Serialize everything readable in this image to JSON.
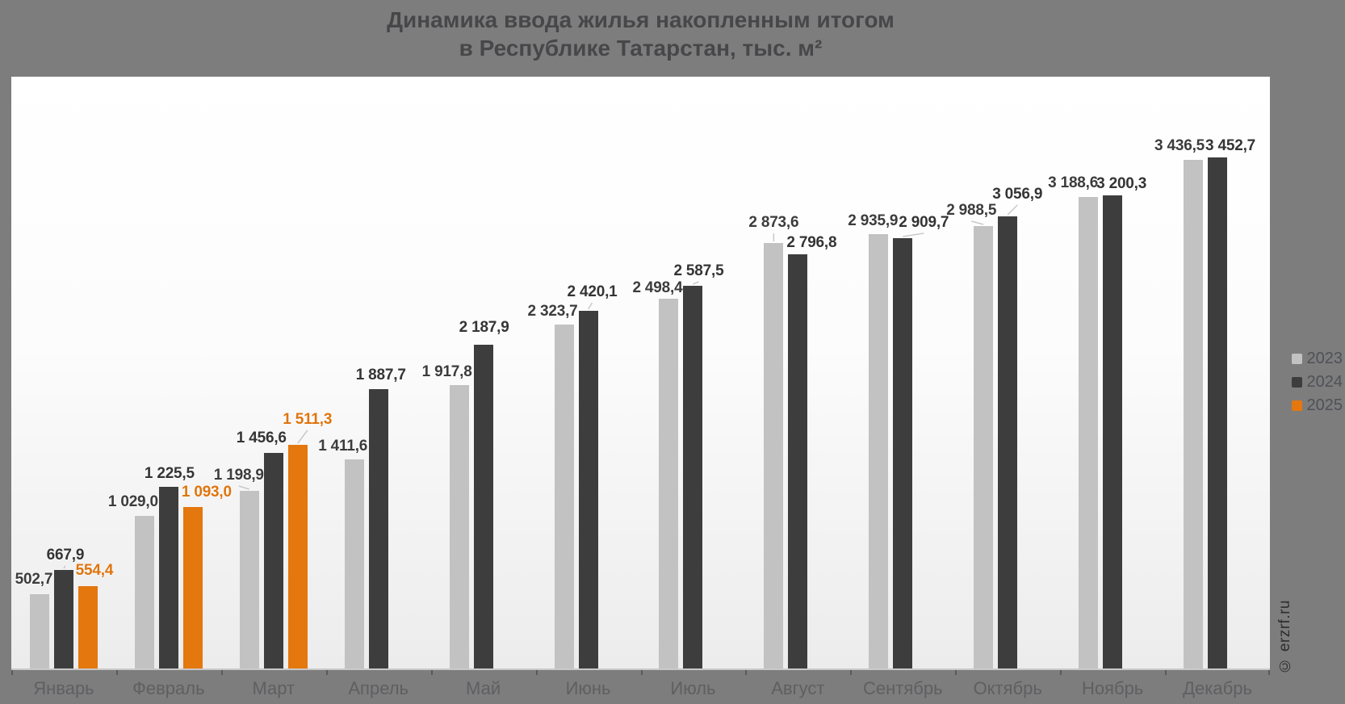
{
  "title": {
    "line1": "Динамика ввода жилья накопленным итогом",
    "line2": "в Республике Татарстан, тыс. м²"
  },
  "watermark": "© erzrf.ru",
  "legend": [
    {
      "label": "2023",
      "color": "#c2c2c2"
    },
    {
      "label": "2024",
      "color": "#3d3d3d"
    },
    {
      "label": "2025",
      "color": "#e4770e"
    }
  ],
  "colors": {
    "background": "#7d7d7d",
    "plot_top": "#ffffff",
    "plot_bottom": "#ececec",
    "axis_line": "#c9c9c9",
    "leader_line": "#c9c9c9"
  },
  "chart_data": {
    "type": "bar",
    "title": "Динамика ввода жилья накопленным итогом в Республике Татарстан, тыс. м²",
    "categories": [
      "Январь",
      "Февраль",
      "Март",
      "Апрель",
      "Май",
      "Июнь",
      "Июль",
      "Август",
      "Сентябрь",
      "Октябрь",
      "Ноябрь",
      "Декабрь"
    ],
    "series": [
      {
        "name": "2023",
        "color": "#c2c2c2",
        "label_color": "#3c3c3c",
        "values": [
          502.7,
          1029.0,
          1198.9,
          1411.6,
          1917.8,
          2323.7,
          2498.4,
          2873.6,
          2935.9,
          2988.5,
          3188.6,
          3436.5
        ],
        "labels": [
          "502,7",
          "1 029,0",
          "1 198,9",
          "1 411,6",
          "1 917,8",
          "2 323,7",
          "2 498,4",
          "2 873,6",
          "2 935,9",
          "2 988,5",
          "3 188,6",
          "3 436,5"
        ]
      },
      {
        "name": "2024",
        "color": "#3d3d3d",
        "label_color": "#343434",
        "values": [
          667.9,
          1225.5,
          1456.6,
          1887.7,
          2187.9,
          2420.1,
          2587.5,
          2796.8,
          2909.7,
          3056.9,
          3200.3,
          3452.7
        ],
        "labels": [
          "667,9",
          "1 225,5",
          "1 456,6",
          "1 887,7",
          "2 187,9",
          "2 420,1",
          "2 587,5",
          "2 796,8",
          "2 909,7",
          "3 056,9",
          "3 200,3",
          "3 452,7"
        ]
      },
      {
        "name": "2025",
        "color": "#e4770e",
        "label_color": "#e0740d",
        "values": [
          554.4,
          1093.0,
          1511.3
        ],
        "labels": [
          "554,4",
          "1 093,0",
          "1 511,3"
        ]
      }
    ],
    "ylim": [
      0,
      4000
    ],
    "grid": false,
    "legend_position": "right"
  }
}
